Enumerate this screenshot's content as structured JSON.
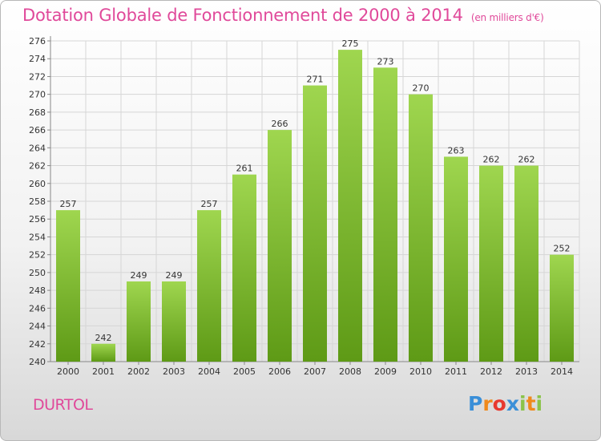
{
  "header": {
    "title": "Dotation Globale de Fonctionnement de 2000 à 2014",
    "unit": "(en milliers d'€)"
  },
  "footer": {
    "commune": "DURTOL",
    "logo": "Proxiti"
  },
  "colors": {
    "title": "#e0499a",
    "bar_top": "#9fd64f",
    "bar_bottom": "#5e9a16",
    "logo": [
      "#3a8fd8",
      "#f08a1c",
      "#e8392f",
      "#3a8fd8",
      "#8bc34a",
      "#f08a1c",
      "#8bc34a"
    ]
  },
  "chart_data": {
    "type": "bar",
    "title": "Dotation Globale de Fonctionnement de 2000 à 2014",
    "subtitle": "(en milliers d'€)",
    "categories": [
      "2000",
      "2001",
      "2002",
      "2003",
      "2004",
      "2005",
      "2006",
      "2007",
      "2008",
      "2009",
      "2010",
      "2011",
      "2012",
      "2013",
      "2014"
    ],
    "values": [
      257,
      242,
      249,
      249,
      257,
      261,
      266,
      271,
      275,
      273,
      270,
      263,
      262,
      262,
      252
    ],
    "ylim": [
      240,
      276
    ],
    "yticks": [
      240,
      242,
      244,
      246,
      248,
      250,
      252,
      254,
      256,
      258,
      260,
      262,
      264,
      266,
      268,
      270,
      272,
      274,
      276
    ],
    "grid": true,
    "data_labels": true
  }
}
